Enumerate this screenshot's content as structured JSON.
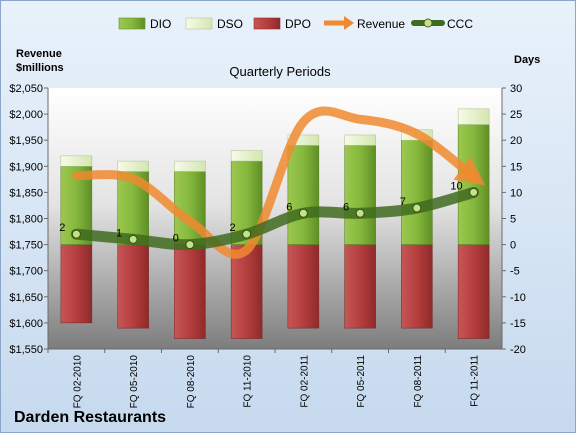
{
  "chart_data": {
    "type": "bar",
    "title": "Quarterly Periods",
    "company": "Darden Restaurants",
    "categories": [
      "FQ 02-2010",
      "FQ 05-2010",
      "FQ 08-2010",
      "FQ 11-2010",
      "FQ 02-2011",
      "FQ 05-2011",
      "FQ 08-2011",
      "FQ 11-2011"
    ],
    "y_left": {
      "label_line1": "Revenue",
      "label_line2": "$millions",
      "ylim": [
        1550,
        2050
      ],
      "step": 50
    },
    "y_right": {
      "label": "Days",
      "ylim": [
        -20,
        30
      ],
      "step": 5
    },
    "series": [
      {
        "name": "DIO",
        "axis": "right",
        "kind": "stacked-bar-positive",
        "color": "#7fb03a",
        "values": [
          15,
          14,
          14,
          16,
          19,
          19,
          20,
          23
        ]
      },
      {
        "name": "DSO",
        "axis": "right",
        "kind": "stacked-bar-positive",
        "color": "#eaf3d2",
        "values": [
          2,
          2,
          2,
          2,
          2,
          2,
          2,
          3
        ]
      },
      {
        "name": "DPO",
        "axis": "right",
        "kind": "bar-negative",
        "color": "#b23b3b",
        "values": [
          15,
          16,
          18,
          18,
          16,
          16,
          16,
          18
        ]
      },
      {
        "name": "Revenue",
        "axis": "left",
        "kind": "line",
        "color": "#f08a30",
        "values": [
          1882,
          1876,
          1795,
          1740,
          1985,
          1990,
          1962,
          1880
        ]
      },
      {
        "name": "CCC",
        "axis": "right",
        "kind": "line",
        "color": "#3f6b1e",
        "values": [
          2,
          1,
          0,
          2,
          6,
          6,
          7,
          10
        ]
      }
    ],
    "ccc_labels": [
      "2",
      "1",
      "0",
      "2",
      "6",
      "6",
      "7",
      "10"
    ],
    "grid": false,
    "legend": "top"
  }
}
